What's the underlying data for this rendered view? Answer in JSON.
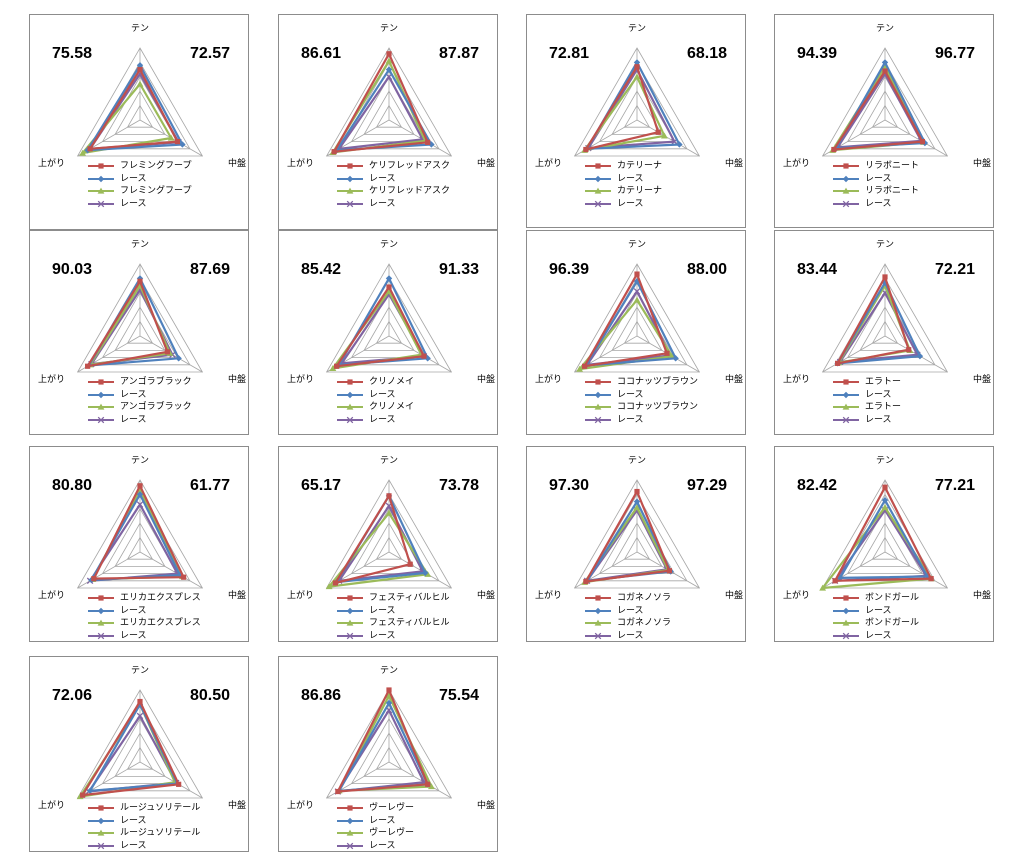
{
  "axes": [
    "テン",
    "中盤",
    "上がり"
  ],
  "series_colors": [
    "#c0504d",
    "#4f81bd",
    "#9bbb59",
    "#8064a2"
  ],
  "chart_data": [
    {
      "type": "radar",
      "left_score": "75.58",
      "right_score": "72.57",
      "legend": [
        "フレミングフープ",
        "レース",
        "フレミングフープ",
        "レース"
      ],
      "series": [
        {
          "name": "フレミングフープ",
          "values": [
            70,
            60,
            80
          ]
        },
        {
          "name": "レース",
          "values": [
            76,
            68,
            84
          ]
        },
        {
          "name": "フレミングフープ",
          "values": [
            50,
            50,
            92
          ]
        },
        {
          "name": "レース",
          "values": [
            64,
            62,
            80
          ]
        }
      ]
    },
    {
      "type": "radar",
      "left_score": "86.61",
      "right_score": "87.87",
      "legend": [
        "ケリフレッドアスク",
        "レース",
        "ケリフレッドアスク",
        "レース"
      ],
      "series": [
        {
          "name": "ケリフレッドアスク",
          "values": [
            92,
            62,
            88
          ]
        },
        {
          "name": "レース",
          "values": [
            70,
            68,
            84
          ]
        },
        {
          "name": "ケリフレッドアスク",
          "values": [
            82,
            58,
            90
          ]
        },
        {
          "name": "レース",
          "values": [
            60,
            54,
            80
          ]
        }
      ]
    },
    {
      "type": "radar",
      "left_score": "72.81",
      "right_score": "68.18",
      "legend": [
        "カテリーナ",
        "レース",
        "カテリーナ",
        "レース"
      ],
      "series": [
        {
          "name": "カテリーナ",
          "values": [
            74,
            34,
            82
          ]
        },
        {
          "name": "レース",
          "values": [
            80,
            68,
            80
          ]
        },
        {
          "name": "カテリーナ",
          "values": [
            60,
            44,
            84
          ]
        },
        {
          "name": "レース",
          "values": [
            70,
            60,
            78
          ]
        }
      ]
    },
    {
      "type": "radar",
      "left_score": "94.39",
      "right_score": "96.77",
      "legend": [
        "リラボニート",
        "レース",
        "リラボニート",
        "レース"
      ],
      "series": [
        {
          "name": "リラボニート",
          "values": [
            68,
            60,
            82
          ]
        },
        {
          "name": "レース",
          "values": [
            80,
            64,
            78
          ]
        },
        {
          "name": "リラボニート",
          "values": [
            74,
            62,
            84
          ]
        },
        {
          "name": "レース",
          "values": [
            64,
            58,
            76
          ]
        }
      ]
    },
    {
      "type": "radar",
      "left_score": "90.03",
      "right_score": "87.69",
      "legend": [
        "アンゴラブラック",
        "レース",
        "アンゴラブラック",
        "レース"
      ],
      "series": [
        {
          "name": "アンゴラブラック",
          "values": [
            76,
            44,
            84
          ]
        },
        {
          "name": "レース",
          "values": [
            80,
            62,
            82
          ]
        },
        {
          "name": "アンゴラブラック",
          "values": [
            70,
            48,
            80
          ]
        },
        {
          "name": "レース",
          "values": [
            64,
            52,
            78
          ]
        }
      ]
    },
    {
      "type": "radar",
      "left_score": "85.42",
      "right_score": "91.33",
      "legend": [
        "クリノメイ",
        "レース",
        "クリノメイ",
        "レース"
      ],
      "series": [
        {
          "name": "クリノメイ",
          "values": [
            68,
            56,
            84
          ]
        },
        {
          "name": "レース",
          "values": [
            80,
            62,
            80
          ]
        },
        {
          "name": "クリノメイ",
          "values": [
            62,
            52,
            90
          ]
        },
        {
          "name": "レース",
          "values": [
            58,
            56,
            76
          ]
        }
      ]
    },
    {
      "type": "radar",
      "left_score": "96.39",
      "right_score": "88.00",
      "legend": [
        "ココナッツブラウン",
        "レース",
        "ココナッツブラウン",
        "レース"
      ],
      "series": [
        {
          "name": "ココナッツブラウン",
          "values": [
            86,
            48,
            84
          ]
        },
        {
          "name": "レース",
          "values": [
            76,
            62,
            82
          ]
        },
        {
          "name": "ココナッツブラウン",
          "values": [
            50,
            56,
            92
          ]
        },
        {
          "name": "レース",
          "values": [
            62,
            54,
            80
          ]
        }
      ]
    },
    {
      "type": "radar",
      "left_score": "83.44",
      "right_score": "72.21",
      "legend": [
        "エラトー",
        "レース",
        "エラトー",
        "レース"
      ],
      "series": [
        {
          "name": "エラトー",
          "values": [
            82,
            38,
            76
          ]
        },
        {
          "name": "レース",
          "values": [
            74,
            56,
            76
          ]
        },
        {
          "name": "エラトー",
          "values": [
            70,
            40,
            74
          ]
        },
        {
          "name": "レース",
          "values": [
            60,
            52,
            72
          ]
        }
      ]
    },
    {
      "type": "radar",
      "left_score": "80.80",
      "right_score": "61.77",
      "legend": [
        "エリカエクスプレス",
        "レース",
        "エリカエクスプレス",
        "レース"
      ],
      "series": [
        {
          "name": "エリカエクスプレス",
          "values": [
            92,
            70,
            74
          ]
        },
        {
          "name": "レース",
          "values": [
            80,
            64,
            78
          ]
        },
        {
          "name": "エリカエクスプレス",
          "values": [
            86,
            68,
            76
          ]
        },
        {
          "name": "レース",
          "values": [
            66,
            60,
            80
          ]
        }
      ]
    },
    {
      "type": "radar",
      "left_score": "65.17",
      "right_score": "73.78",
      "legend": [
        "フェスティバルヒル",
        "レース",
        "フェスティバルヒル",
        "レース"
      ],
      "series": [
        {
          "name": "フェスティバルヒル",
          "values": [
            78,
            34,
            86
          ]
        },
        {
          "name": "レース",
          "values": [
            78,
            58,
            84
          ]
        },
        {
          "name": "フェスティバルヒル",
          "values": [
            54,
            62,
            96
          ]
        },
        {
          "name": "レース",
          "values": [
            64,
            54,
            80
          ]
        }
      ]
    },
    {
      "type": "radar",
      "left_score": "97.30",
      "right_score": "97.29",
      "legend": [
        "コガネノソラ",
        "レース",
        "コガネノソラ",
        "レース"
      ],
      "series": [
        {
          "name": "コガネノソラ",
          "values": [
            84,
            52,
            82
          ]
        },
        {
          "name": "レース",
          "values": [
            70,
            54,
            80
          ]
        },
        {
          "name": "コガネノソラ",
          "values": [
            62,
            50,
            84
          ]
        },
        {
          "name": "レース",
          "values": [
            58,
            48,
            80
          ]
        }
      ]
    },
    {
      "type": "radar",
      "left_score": "82.42",
      "right_score": "77.21",
      "legend": [
        "ボンドガール",
        "レース",
        "ボンドガール",
        "レース"
      ],
      "series": [
        {
          "name": "ボンドガール",
          "values": [
            90,
            74,
            80
          ]
        },
        {
          "name": "レース",
          "values": [
            72,
            68,
            72
          ]
        },
        {
          "name": "ボンドガール",
          "values": [
            62,
            74,
            100
          ]
        },
        {
          "name": "レース",
          "values": [
            58,
            66,
            80
          ]
        }
      ]
    },
    {
      "type": "radar",
      "left_score": "72.06",
      "right_score": "80.50",
      "legend": [
        "ルージュソリテール",
        "レース",
        "ルージュソリテール",
        "レース"
      ],
      "series": [
        {
          "name": "ルージュソリテール",
          "values": [
            84,
            62,
            92
          ]
        },
        {
          "name": "レース",
          "values": [
            80,
            60,
            80
          ]
        },
        {
          "name": "ルージュソリテール",
          "values": [
            80,
            56,
            96
          ]
        },
        {
          "name": "レース",
          "values": [
            64,
            58,
            82
          ]
        }
      ]
    },
    {
      "type": "radar",
      "left_score": "86.86",
      "right_score": "75.54",
      "legend": [
        "ヴーレヴー",
        "レース",
        "ヴーレヴー",
        "レース"
      ],
      "series": [
        {
          "name": "ヴーレヴー",
          "values": [
            100,
            62,
            82
          ]
        },
        {
          "name": "レース",
          "values": [
            82,
            62,
            80
          ]
        },
        {
          "name": "ヴーレヴー",
          "values": [
            92,
            68,
            80
          ]
        },
        {
          "name": "レース",
          "values": [
            72,
            56,
            82
          ]
        }
      ]
    }
  ]
}
